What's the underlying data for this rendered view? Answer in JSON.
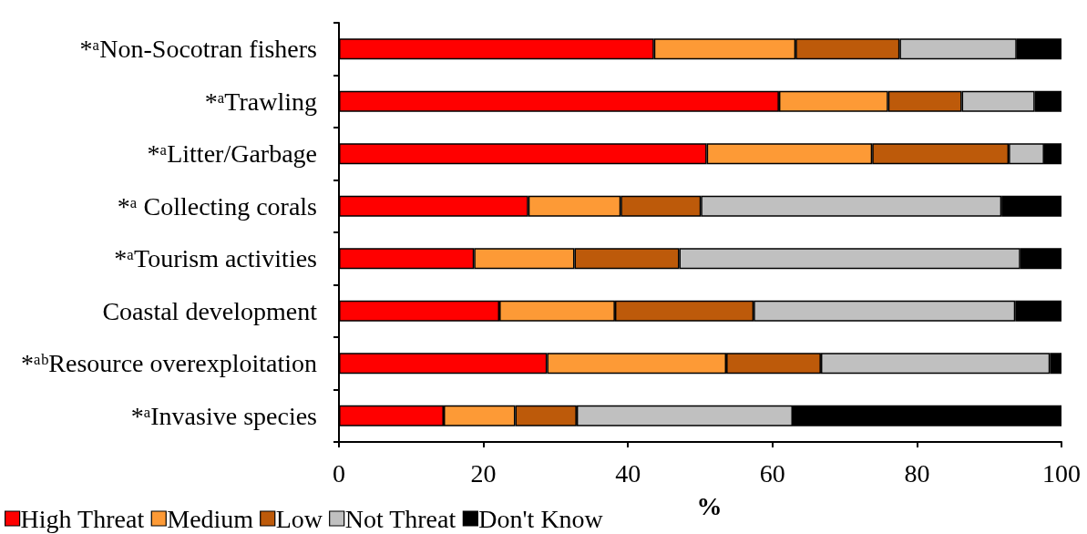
{
  "chart_data": {
    "type": "bar",
    "orientation": "horizontal",
    "stacked": true,
    "categories": [
      "*ᵃNon-Socotran fishers",
      "*ᵃTrawling",
      "*ᵃLitter/Garbage",
      "*ᵃ Collecting corals",
      "*ᵃTourism activities",
      "Coastal development",
      "*ᵃᵇResource overexploitation",
      "*ᵃInvasive species"
    ],
    "series": [
      {
        "name": "High Threat",
        "color": "#ff0000",
        "values": [
          43.6,
          60.9,
          50.9,
          26.2,
          18.7,
          22.2,
          28.8,
          14.5
        ]
      },
      {
        "name": "Medium",
        "color": "#fd9a36",
        "values": [
          19.6,
          15.1,
          22.9,
          12.8,
          13.9,
          16.0,
          24.8,
          9.9
        ]
      },
      {
        "name": "Low",
        "color": "#bd5a0a",
        "values": [
          14.4,
          10.2,
          18.9,
          11.1,
          14.5,
          19.2,
          13.1,
          8.5
        ]
      },
      {
        "name": "Not Threat",
        "color": "#c0c0c0",
        "values": [
          16.2,
          10.1,
          4.9,
          41.6,
          47.2,
          36.2,
          31.7,
          29.9
        ]
      },
      {
        "name": "Don't Know",
        "color": "#000000",
        "values": [
          6.2,
          3.7,
          2.4,
          8.3,
          5.7,
          6.4,
          1.6,
          37.2
        ]
      }
    ],
    "xlabel": "%",
    "xlim": [
      0,
      100
    ],
    "xticks": [
      0,
      20,
      40,
      60,
      80,
      100
    ],
    "grid": false,
    "legend": "bottom left"
  }
}
